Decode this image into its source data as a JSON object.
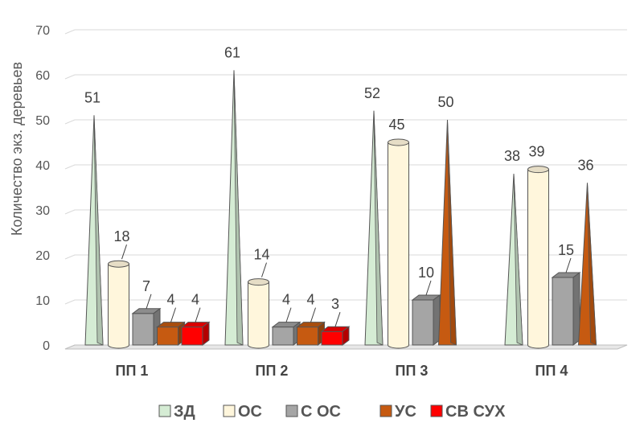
{
  "chart_data": {
    "type": "bar",
    "style": "3d",
    "categories": [
      "ПП 1",
      "ПП 2",
      "ПП 3",
      "ПП 4"
    ],
    "ylabel": "Количество экз. деревьев",
    "xlabel": "",
    "ylim": [
      0,
      70
    ],
    "yticks": [
      0,
      10,
      20,
      30,
      40,
      50,
      60,
      70
    ],
    "grid": true,
    "legend_position": "bottom",
    "series": [
      {
        "name": "ЗД",
        "shape": "pyramid",
        "color": "#d5ecd4",
        "values": [
          51,
          61,
          52,
          38
        ],
        "labels": [
          "51",
          "61",
          "52",
          "38"
        ]
      },
      {
        "name": "ОС",
        "shape": "cylinder",
        "color": "#fff6dc",
        "values": [
          18,
          14,
          45,
          39
        ],
        "labels": [
          "18",
          "14",
          "45",
          "39"
        ]
      },
      {
        "name": "С ОС",
        "shape": "box",
        "color": "#a5a5a5",
        "values": [
          7,
          4,
          10,
          15
        ],
        "labels": [
          "7",
          "4",
          "10",
          "15"
        ]
      },
      {
        "name": "УС",
        "shape": "mixed",
        "color": "#c65a11",
        "values": [
          4,
          4,
          50,
          36
        ],
        "labels": [
          "4",
          "4",
          "50",
          "36"
        ]
      },
      {
        "name": "СВ СУХ",
        "shape": "box",
        "color": "#ff0000",
        "values": [
          4,
          3,
          null,
          null
        ],
        "labels": [
          "4",
          "3",
          "",
          ""
        ]
      }
    ]
  }
}
